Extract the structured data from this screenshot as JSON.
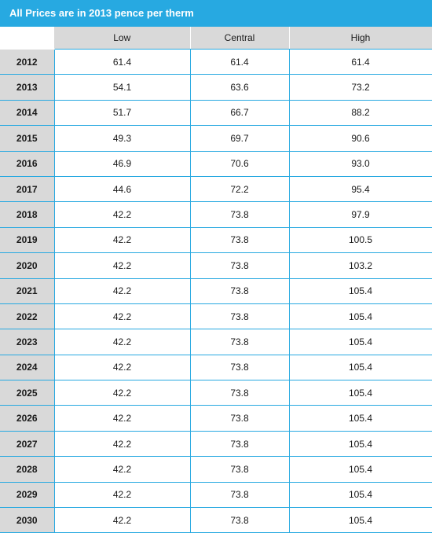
{
  "banner": {
    "title": "All Prices are in 2013 pence per therm"
  },
  "table": {
    "columns": [
      "",
      "Low",
      "Central",
      "High"
    ],
    "rows": [
      {
        "year": "2012",
        "low": "61.4",
        "central": "61.4",
        "high": "61.4"
      },
      {
        "year": "2013",
        "low": "54.1",
        "central": "63.6",
        "high": "73.2"
      },
      {
        "year": "2014",
        "low": "51.7",
        "central": "66.7",
        "high": "88.2"
      },
      {
        "year": "2015",
        "low": "49.3",
        "central": "69.7",
        "high": "90.6"
      },
      {
        "year": "2016",
        "low": "46.9",
        "central": "70.6",
        "high": "93.0"
      },
      {
        "year": "2017",
        "low": "44.6",
        "central": "72.2",
        "high": "95.4"
      },
      {
        "year": "2018",
        "low": "42.2",
        "central": "73.8",
        "high": "97.9"
      },
      {
        "year": "2019",
        "low": "42.2",
        "central": "73.8",
        "high": "100.5"
      },
      {
        "year": "2020",
        "low": "42.2",
        "central": "73.8",
        "high": "103.2"
      },
      {
        "year": "2021",
        "low": "42.2",
        "central": "73.8",
        "high": "105.4"
      },
      {
        "year": "2022",
        "low": "42.2",
        "central": "73.8",
        "high": "105.4"
      },
      {
        "year": "2023",
        "low": "42.2",
        "central": "73.8",
        "high": "105.4"
      },
      {
        "year": "2024",
        "low": "42.2",
        "central": "73.8",
        "high": "105.4"
      },
      {
        "year": "2025",
        "low": "42.2",
        "central": "73.8",
        "high": "105.4"
      },
      {
        "year": "2026",
        "low": "42.2",
        "central": "73.8",
        "high": "105.4"
      },
      {
        "year": "2027",
        "low": "42.2",
        "central": "73.8",
        "high": "105.4"
      },
      {
        "year": "2028",
        "low": "42.2",
        "central": "73.8",
        "high": "105.4"
      },
      {
        "year": "2029",
        "low": "42.2",
        "central": "73.8",
        "high": "105.4"
      },
      {
        "year": "2030",
        "low": "42.2",
        "central": "73.8",
        "high": "105.4"
      }
    ]
  },
  "colors": {
    "accent": "#27a9e1",
    "header_fill": "#d9d9d9",
    "year_fill": "#d9d9d9"
  }
}
